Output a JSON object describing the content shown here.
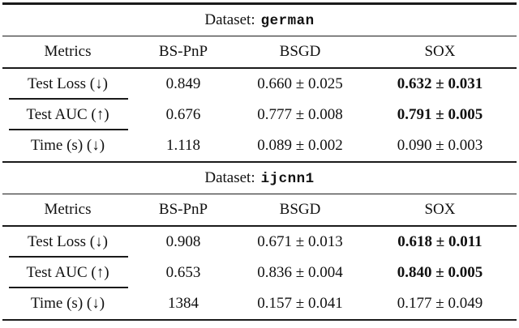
{
  "page": {
    "background": "#ffffff",
    "text_color": "#111111",
    "rule_color": "#1a1a1a"
  },
  "table": {
    "columns": [
      "Metrics",
      "BS-PnP",
      "BSGD",
      "SOX"
    ],
    "sections": [
      {
        "title_prefix": "Dataset:",
        "dataset": "german",
        "rows": [
          {
            "metric": "Test Loss (↓)",
            "values": [
              "0.849",
              "0.660 ± 0.025",
              "0.632 ± 0.031"
            ],
            "bold_value_index": 2
          },
          {
            "metric": "Test AUC (↑)",
            "values": [
              "0.676",
              "0.777 ± 0.008",
              "0.791 ± 0.005"
            ],
            "bold_value_index": 2
          },
          {
            "metric": "Time (s) (↓)",
            "values": [
              "1.118",
              "0.089 ± 0.002",
              "0.090 ± 0.003"
            ],
            "bold_value_index": null
          }
        ]
      },
      {
        "title_prefix": "Dataset:",
        "dataset": "ijcnn1",
        "rows": [
          {
            "metric": "Test Loss (↓)",
            "values": [
              "0.908",
              "0.671 ± 0.013",
              "0.618 ± 0.011"
            ],
            "bold_value_index": 2
          },
          {
            "metric": "Test AUC (↑)",
            "values": [
              "0.653",
              "0.836 ± 0.004",
              "0.840 ± 0.005"
            ],
            "bold_value_index": 2
          },
          {
            "metric": "Time (s) (↓)",
            "values": [
              "1384",
              "0.157 ± 0.041",
              "0.177 ± 0.049"
            ],
            "bold_value_index": null
          }
        ]
      }
    ]
  }
}
